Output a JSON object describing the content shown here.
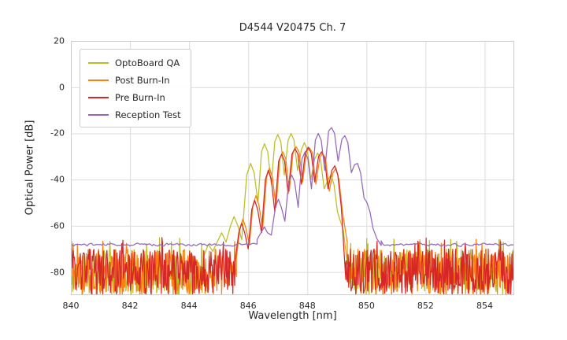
{
  "chart_data": {
    "type": "line",
    "title": "D4544 V20475 Ch. 7",
    "xlabel": "Wavelength [nm]",
    "ylabel": "Optical Power [dB]",
    "xlim": [
      840,
      855
    ],
    "ylim": [
      -90,
      20
    ],
    "xticks": [
      840,
      842,
      844,
      846,
      848,
      850,
      852,
      854
    ],
    "yticks": [
      20,
      0,
      -20,
      -40,
      -60,
      -80
    ],
    "grid": true,
    "legend_position": "upper left",
    "series": [
      {
        "name": "OptoBoard QA",
        "color": "#bcbd22",
        "seed": 11,
        "noise_band": [
          -90,
          -70
        ],
        "noise_regions": [
          [
            840,
            844.5
          ],
          [
            849.35,
            855
          ]
        ],
        "points": [
          [
            844.5,
            -73
          ],
          [
            844.65,
            -68
          ],
          [
            844.8,
            -71
          ],
          [
            844.95,
            -67
          ],
          [
            845.1,
            -63
          ],
          [
            845.25,
            -67
          ],
          [
            845.4,
            -60
          ],
          [
            845.52,
            -56
          ],
          [
            845.65,
            -60
          ],
          [
            845.78,
            -66
          ],
          [
            845.95,
            -38
          ],
          [
            846.08,
            -33
          ],
          [
            846.2,
            -37
          ],
          [
            846.33,
            -50
          ],
          [
            846.45,
            -28
          ],
          [
            846.55,
            -24.5
          ],
          [
            846.66,
            -28
          ],
          [
            846.78,
            -42
          ],
          [
            846.9,
            -23.5
          ],
          [
            847.0,
            -20.5
          ],
          [
            847.1,
            -23.5
          ],
          [
            847.22,
            -38
          ],
          [
            847.35,
            -23
          ],
          [
            847.45,
            -20
          ],
          [
            847.55,
            -23
          ],
          [
            847.67,
            -36
          ],
          [
            847.8,
            -27
          ],
          [
            847.9,
            -24
          ],
          [
            848.0,
            -27
          ],
          [
            848.12,
            -40
          ],
          [
            848.25,
            -31
          ],
          [
            848.35,
            -28.5
          ],
          [
            848.45,
            -31.5
          ],
          [
            848.57,
            -44
          ],
          [
            848.7,
            -40
          ],
          [
            848.8,
            -38
          ],
          [
            848.9,
            -42
          ],
          [
            849.02,
            -54
          ],
          [
            849.12,
            -58
          ],
          [
            849.22,
            -62
          ],
          [
            849.35,
            -74
          ]
        ]
      },
      {
        "name": "Post Burn-In",
        "color": "#ff7f0e",
        "seed": 22,
        "noise_band": [
          -90,
          -70
        ],
        "noise_regions": [
          [
            840,
            845.6
          ],
          [
            849.35,
            855
          ]
        ],
        "points": [
          [
            845.6,
            -74
          ],
          [
            845.72,
            -61
          ],
          [
            845.82,
            -57
          ],
          [
            845.92,
            -61
          ],
          [
            846.04,
            -68
          ],
          [
            846.16,
            -51
          ],
          [
            846.26,
            -47
          ],
          [
            846.36,
            -51
          ],
          [
            846.49,
            -61
          ],
          [
            846.62,
            -39
          ],
          [
            846.72,
            -35
          ],
          [
            846.82,
            -39
          ],
          [
            846.94,
            -52
          ],
          [
            847.07,
            -31
          ],
          [
            847.17,
            -28
          ],
          [
            847.27,
            -31
          ],
          [
            847.39,
            -45
          ],
          [
            847.52,
            -28
          ],
          [
            847.62,
            -25.8
          ],
          [
            847.72,
            -28
          ],
          [
            847.84,
            -41
          ],
          [
            847.97,
            -28
          ],
          [
            848.07,
            -26.2
          ],
          [
            848.17,
            -28.3
          ],
          [
            848.29,
            -42
          ],
          [
            848.42,
            -30.5
          ],
          [
            848.52,
            -28.6
          ],
          [
            848.62,
            -31
          ],
          [
            848.74,
            -45
          ],
          [
            848.87,
            -37
          ],
          [
            848.97,
            -35
          ],
          [
            849.07,
            -40
          ],
          [
            849.19,
            -54
          ],
          [
            849.35,
            -74
          ]
        ]
      },
      {
        "name": "Pre Burn-In",
        "color": "#d62728",
        "seed": 33,
        "noise_band": [
          -90,
          -70
        ],
        "noise_regions": [
          [
            840,
            845.55
          ],
          [
            849.3,
            855
          ]
        ],
        "points": [
          [
            845.55,
            -76
          ],
          [
            845.68,
            -63
          ],
          [
            845.78,
            -59
          ],
          [
            845.88,
            -63
          ],
          [
            846.0,
            -70
          ],
          [
            846.12,
            -53
          ],
          [
            846.22,
            -49
          ],
          [
            846.32,
            -53
          ],
          [
            846.45,
            -63
          ],
          [
            846.58,
            -40
          ],
          [
            846.68,
            -36
          ],
          [
            846.78,
            -40
          ],
          [
            846.9,
            -54
          ],
          [
            847.03,
            -32
          ],
          [
            847.13,
            -29
          ],
          [
            847.23,
            -32
          ],
          [
            847.35,
            -46
          ],
          [
            847.48,
            -29
          ],
          [
            847.58,
            -26.5
          ],
          [
            847.68,
            -29
          ],
          [
            847.8,
            -42
          ],
          [
            847.93,
            -28.5
          ],
          [
            848.03,
            -26
          ],
          [
            848.13,
            -28.5
          ],
          [
            848.25,
            -41
          ],
          [
            848.38,
            -30
          ],
          [
            848.48,
            -28
          ],
          [
            848.58,
            -30.5
          ],
          [
            848.7,
            -44
          ],
          [
            848.83,
            -36
          ],
          [
            848.93,
            -34
          ],
          [
            849.03,
            -38
          ],
          [
            849.15,
            -52
          ],
          [
            849.3,
            -76
          ]
        ]
      },
      {
        "name": "Reception Test",
        "color": "#9467bd",
        "seed": 44,
        "smooth": true,
        "noise_band": [
          -69.3,
          -67.0
        ],
        "noise_regions": [
          [
            840,
            846.3
          ],
          [
            850.5,
            855
          ]
        ],
        "points": [
          [
            846.3,
            -66
          ],
          [
            846.45,
            -62.5
          ],
          [
            846.55,
            -60.5
          ],
          [
            846.65,
            -63
          ],
          [
            846.78,
            -64
          ],
          [
            846.92,
            -52
          ],
          [
            847.02,
            -48.5
          ],
          [
            847.12,
            -52
          ],
          [
            847.24,
            -58
          ],
          [
            847.37,
            -41
          ],
          [
            847.47,
            -38
          ],
          [
            847.57,
            -41
          ],
          [
            847.69,
            -52
          ],
          [
            847.82,
            -31
          ],
          [
            847.92,
            -28
          ],
          [
            848.02,
            -31
          ],
          [
            848.14,
            -44
          ],
          [
            848.27,
            -23
          ],
          [
            848.37,
            -20
          ],
          [
            848.47,
            -23
          ],
          [
            848.59,
            -36
          ],
          [
            848.72,
            -19
          ],
          [
            848.82,
            -17.5
          ],
          [
            848.92,
            -20
          ],
          [
            849.04,
            -32
          ],
          [
            849.17,
            -22.5
          ],
          [
            849.27,
            -21
          ],
          [
            849.37,
            -24
          ],
          [
            849.49,
            -37
          ],
          [
            849.6,
            -33.5
          ],
          [
            849.7,
            -33
          ],
          [
            849.8,
            -37
          ],
          [
            849.92,
            -48
          ],
          [
            850.02,
            -50
          ],
          [
            850.12,
            -54
          ],
          [
            850.22,
            -61
          ],
          [
            850.35,
            -65.5
          ],
          [
            850.5,
            -66.5
          ]
        ]
      }
    ]
  }
}
